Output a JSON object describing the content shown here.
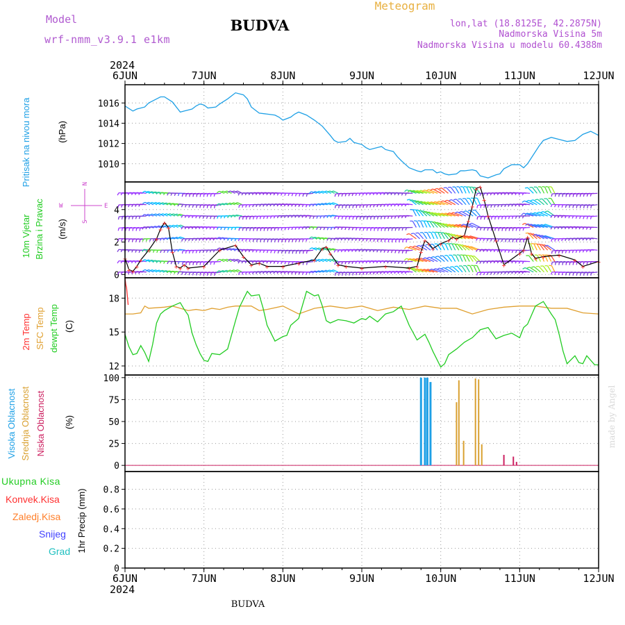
{
  "header": {
    "model_label": "Model",
    "model_name": "wrf-nmm_v3.9.1  e1km",
    "station": "BUDVA",
    "product": "Meteogram",
    "lonlat": "lon,lat (18.8125E, 42.2875N)",
    "elevation": "Nadmorska Visina 5m",
    "model_elevation": "Nadmorska Visina u modelu 60.4388m"
  },
  "footer": {
    "station": "BUDVA",
    "credit": "made by Angel"
  },
  "time_axis": {
    "year": "2024",
    "ticks": [
      "6JUN",
      "7JUN",
      "8JUN",
      "9JUN",
      "10JUN",
      "11JUN",
      "12JUN"
    ]
  },
  "colors": {
    "pressure": "#1ea0e6",
    "temp2m": "#ff3030",
    "sfc_temp": "#e0a030",
    "dewpoint": "#22cc22",
    "cloud_high": "#1ea0e6",
    "cloud_mid": "#d9a030",
    "cloud_low": "#cc2060",
    "wind_purple": "#8a2be2",
    "label_magenta": "#cc44cc",
    "label_orange": "#ff7f2a",
    "label_blue": "#4040ff",
    "label_teal": "#20c0c0"
  },
  "chart_data": [
    {
      "type": "line",
      "panel": "pressure",
      "ylabel_lines": [
        "Pritisak na nivou mora",
        "(hPa)"
      ],
      "ylim": [
        1008.2,
        1017.8
      ],
      "yticks": [
        1010,
        1012,
        1014,
        1016
      ],
      "grid": true,
      "series": [
        {
          "name": "Pritisak na nivou mora",
          "x": [
            0,
            0.1,
            0.15,
            0.25,
            0.3,
            0.4,
            0.45,
            0.5,
            0.6,
            0.65,
            0.7,
            0.75,
            0.85,
            0.9,
            0.95,
            1.0,
            1.05,
            1.15,
            1.2,
            1.3,
            1.4,
            1.5,
            1.55,
            1.6,
            1.7,
            1.8,
            1.9,
            1.95,
            2.0,
            2.1,
            2.15,
            2.2,
            2.3,
            2.4,
            2.5,
            2.6,
            2.65,
            2.7,
            2.8,
            2.85,
            2.9,
            3.0,
            3.05,
            3.1,
            3.2,
            3.25,
            3.3,
            3.4,
            3.45,
            3.5,
            3.6,
            3.7,
            3.75,
            3.8,
            3.9,
            3.95,
            4.0,
            4.05,
            4.1,
            4.2,
            4.25,
            4.3,
            4.4,
            4.45,
            4.5,
            4.6,
            4.7,
            4.75,
            4.8,
            4.9,
            5.0,
            5.05,
            5.1,
            5.2,
            5.25,
            5.3,
            5.4,
            5.5,
            5.6,
            5.7,
            5.8,
            5.9,
            6.0
          ],
          "y": [
            1015.7,
            1015.2,
            1015.4,
            1015.6,
            1016.0,
            1016.4,
            1016.6,
            1016.6,
            1016.1,
            1015.6,
            1015.1,
            1015.2,
            1015.4,
            1015.7,
            1015.9,
            1015.8,
            1015.5,
            1015.6,
            1015.9,
            1016.4,
            1017.0,
            1016.8,
            1016.4,
            1015.6,
            1015.0,
            1014.9,
            1014.8,
            1014.6,
            1014.3,
            1014.6,
            1014.9,
            1015.1,
            1014.8,
            1014.3,
            1013.7,
            1012.8,
            1012.3,
            1012.1,
            1012.2,
            1012.5,
            1012.1,
            1011.9,
            1011.6,
            1011.4,
            1011.6,
            1011.7,
            1011.4,
            1011.2,
            1010.7,
            1010.3,
            1009.6,
            1009.3,
            1009.2,
            1009.4,
            1009.4,
            1009.1,
            1009.2,
            1009.0,
            1008.9,
            1009.0,
            1009.3,
            1009.3,
            1009.4,
            1009.3,
            1008.8,
            1008.6,
            1008.9,
            1009.0,
            1009.5,
            1009.9,
            1009.9,
            1009.6,
            1010.0,
            1011.2,
            1011.8,
            1012.3,
            1012.6,
            1012.4,
            1012.2,
            1012.3,
            1012.9,
            1013.2,
            1012.8
          ]
        }
      ]
    },
    {
      "type": "line",
      "panel": "wind",
      "ylabel_lines": [
        "10m Vjetar",
        "Brzina i Pravac",
        "(m/s)"
      ],
      "compass": {
        "n": "N",
        "s": "S",
        "w": "W",
        "e": "E"
      },
      "ylim": [
        -0.2,
        5.7
      ],
      "yticks": [
        0,
        2,
        4
      ],
      "grid": true,
      "series": [
        {
          "name": "Brzina",
          "x": [
            0,
            0.05,
            0.1,
            0.15,
            0.2,
            0.3,
            0.4,
            0.45,
            0.5,
            0.55,
            0.6,
            0.65,
            0.7,
            0.75,
            0.8,
            1.0,
            1.2,
            1.4,
            1.5,
            1.6,
            1.7,
            1.8,
            2.0,
            2.2,
            2.4,
            2.5,
            2.55,
            2.6,
            2.7,
            2.8,
            3.0,
            3.3,
            3.6,
            3.7,
            3.75,
            3.8,
            3.85,
            3.9,
            4.0,
            4.1,
            4.15,
            4.2,
            4.3,
            4.35,
            4.4,
            4.45,
            4.5,
            4.55,
            4.6,
            4.7,
            4.8,
            5.0,
            5.05,
            5.1,
            5.15,
            5.2,
            5.3,
            5.5,
            5.7,
            5.8,
            6.0
          ],
          "y": [
            1.0,
            0.3,
            0.2,
            0.5,
            0.9,
            1.5,
            2.2,
            2.8,
            3.2,
            2.9,
            1.4,
            0.5,
            0.4,
            0.6,
            0.4,
            0.5,
            1.5,
            1.8,
            1.1,
            0.6,
            0.7,
            0.5,
            0.5,
            0.7,
            0.9,
            1.6,
            1.7,
            1.3,
            0.6,
            0.5,
            0.4,
            0.5,
            0.4,
            0.5,
            1.4,
            2.1,
            1.9,
            1.6,
            1.9,
            2.1,
            2.3,
            2.2,
            2.4,
            3.3,
            4.2,
            5.3,
            5.4,
            4.6,
            3.6,
            2.1,
            0.6,
            1.3,
            1.5,
            2.3,
            1.3,
            1.0,
            1.1,
            1.2,
            0.9,
            0.5,
            0.8
          ]
        }
      ]
    },
    {
      "type": "line",
      "panel": "temperature",
      "ylabel_lines": [
        "2m Temp",
        "SFC Temp",
        "dewpt Temp",
        "(C)"
      ],
      "ylim": [
        11.2,
        19.8
      ],
      "yticks": [
        12,
        15,
        18
      ],
      "grid": true,
      "series": [
        {
          "name": "SFC Temp",
          "x": [
            0,
            0.1,
            0.2,
            0.25,
            0.3,
            0.5,
            0.6,
            0.8,
            0.9,
            1.0,
            1.1,
            1.2,
            1.3,
            1.4,
            1.6,
            1.7,
            1.8,
            2.0,
            2.2,
            2.4,
            2.6,
            2.8,
            3.0,
            3.2,
            3.4,
            3.6,
            3.8,
            4.0,
            4.2,
            4.4,
            4.6,
            4.8,
            5.0,
            5.2,
            5.4,
            5.6,
            5.8,
            6.0
          ],
          "y": [
            16.6,
            16.6,
            16.7,
            17.3,
            17.1,
            17.2,
            17.3,
            16.9,
            17.0,
            16.9,
            17.1,
            17.0,
            17.2,
            17.3,
            17.3,
            16.9,
            17.0,
            17.3,
            16.6,
            17.1,
            17.3,
            17.1,
            17.3,
            16.9,
            17.2,
            17.0,
            17.3,
            17.1,
            17.1,
            16.6,
            17.0,
            17.2,
            17.3,
            17.3,
            17.1,
            17.1,
            16.7,
            16.6
          ]
        },
        {
          "name": "dewpt Temp",
          "x": [
            0,
            0.05,
            0.1,
            0.15,
            0.2,
            0.25,
            0.3,
            0.35,
            0.4,
            0.45,
            0.5,
            0.6,
            0.7,
            0.75,
            0.8,
            0.85,
            0.9,
            0.95,
            1.0,
            1.05,
            1.1,
            1.2,
            1.3,
            1.4,
            1.45,
            1.5,
            1.55,
            1.6,
            1.7,
            1.75,
            1.8,
            1.9,
            2.0,
            2.05,
            2.1,
            2.2,
            2.3,
            2.4,
            2.45,
            2.5,
            2.55,
            2.6,
            2.7,
            2.8,
            2.9,
            3.0,
            3.05,
            3.1,
            3.2,
            3.3,
            3.4,
            3.5,
            3.6,
            3.7,
            3.8,
            3.85,
            3.9,
            3.95,
            4.0,
            4.05,
            4.1,
            4.2,
            4.3,
            4.4,
            4.5,
            4.6,
            4.7,
            4.8,
            4.9,
            5.0,
            5.05,
            5.1,
            5.2,
            5.3,
            5.4,
            5.45,
            5.5,
            5.55,
            5.6,
            5.7,
            5.75,
            5.8,
            5.85,
            5.9,
            5.95,
            6.0
          ],
          "y": [
            14.8,
            13.7,
            13.0,
            13.1,
            13.8,
            13.2,
            12.4,
            13.9,
            15.8,
            16.6,
            16.9,
            17.3,
            17.6,
            17.0,
            16.5,
            14.9,
            13.9,
            13.1,
            12.5,
            12.4,
            13.1,
            13.0,
            13.5,
            16.0,
            17.2,
            17.9,
            18.6,
            18.2,
            18.3,
            17.1,
            15.6,
            14.2,
            14.6,
            14.7,
            15.6,
            16.2,
            18.6,
            18.2,
            18.3,
            17.3,
            16.0,
            15.8,
            16.1,
            16.0,
            15.8,
            16.2,
            16.1,
            16.4,
            15.9,
            16.6,
            16.8,
            17.3,
            15.6,
            14.3,
            14.8,
            14.1,
            13.3,
            12.6,
            11.9,
            12.2,
            13.0,
            13.5,
            14.1,
            14.5,
            15.2,
            15.4,
            14.4,
            14.7,
            14.9,
            14.5,
            15.4,
            15.7,
            17.3,
            17.7,
            16.6,
            16.1,
            14.8,
            13.3,
            12.2,
            12.9,
            12.3,
            12.2,
            12.9,
            12.5,
            12.1,
            12.1
          ]
        },
        {
          "name": "2m Temp",
          "x": [
            0,
            0.01,
            0.02,
            0.04
          ],
          "y": [
            19.8,
            19.2,
            18.9,
            17.4
          ]
        }
      ]
    },
    {
      "type": "bar",
      "panel": "clouds",
      "ylabel_lines": [
        "Visoka Oblacnost",
        "Srednja Oblacnost",
        "Niska Oblacnost",
        "(%)"
      ],
      "ylim": [
        -7,
        103
      ],
      "yticks": [
        0,
        25,
        50,
        75,
        100
      ],
      "grid": true,
      "series": [
        {
          "name": "Visoka Oblacnost",
          "x": [
            3.75,
            3.8,
            3.83,
            3.87
          ],
          "values": [
            100,
            100,
            100,
            95
          ]
        },
        {
          "name": "Srednja Oblacnost",
          "x": [
            4.2,
            4.23,
            4.29,
            4.44,
            4.48,
            4.52
          ],
          "values": [
            72,
            97,
            28,
            99,
            98,
            24
          ]
        },
        {
          "name": "Niska Oblacnost",
          "x": [
            4.8,
            4.92,
            4.96
          ],
          "values": [
            12,
            10,
            4
          ]
        }
      ]
    },
    {
      "type": "bar",
      "panel": "precipitation",
      "ylabel_lines": [
        "1hr Precip (mm)"
      ],
      "legend": [
        "Ukupna Kisa",
        "Konvek.Kisa",
        "Zaledj.Kisa",
        "Snijeg",
        "Grad"
      ],
      "ylim": [
        0,
        0.98
      ],
      "yticks": [
        0,
        0.2,
        0.4,
        0.6,
        0.8
      ],
      "grid": true,
      "series": [
        {
          "name": "Ukupna Kisa",
          "x": [],
          "values": []
        }
      ]
    }
  ]
}
